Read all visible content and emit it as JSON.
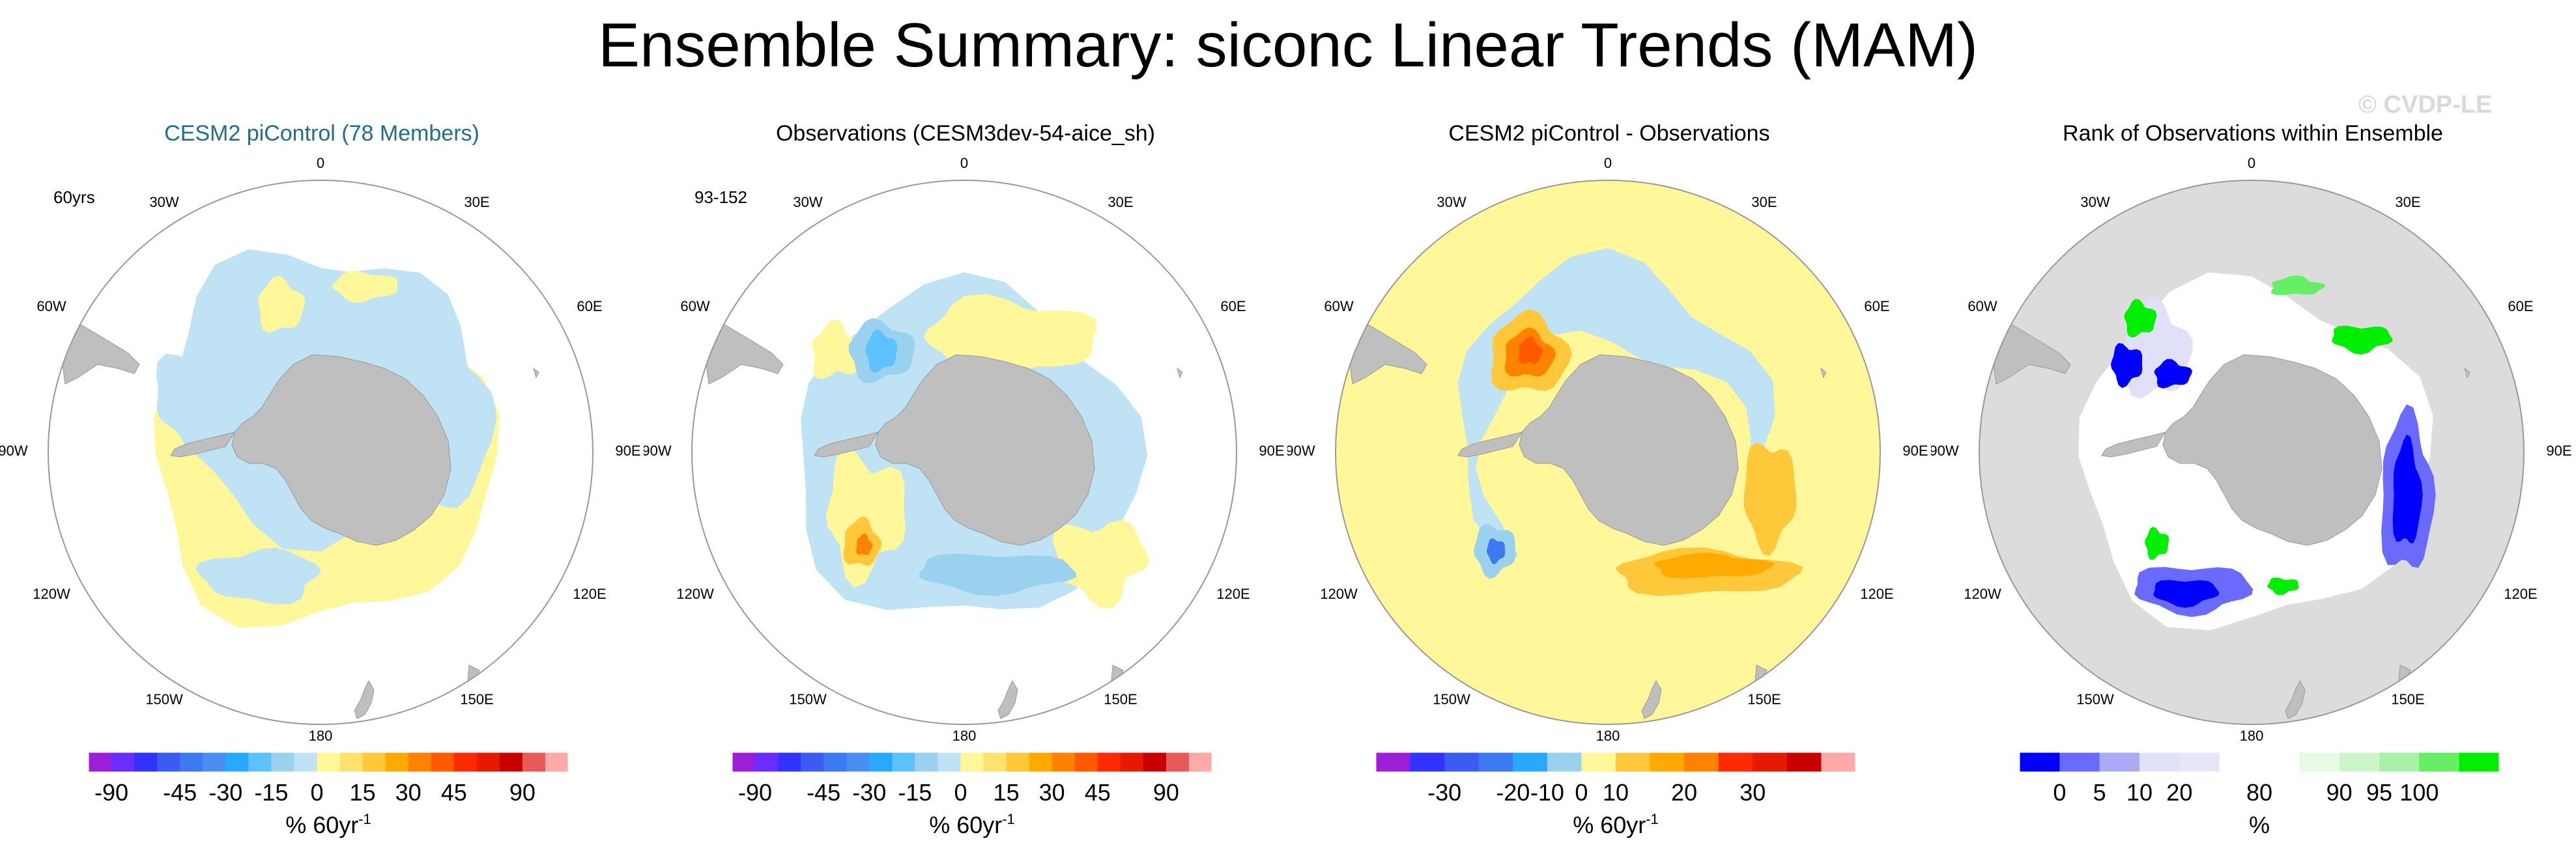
{
  "title": "Ensemble Summary: siconc Linear Trends (MAM)",
  "watermark": "© CVDP-LE",
  "colors": {
    "land": "#bfbfbf",
    "land_edge": "#999999",
    "ocean": "#ffffff",
    "rank_background": "#dcdcdc",
    "circle": "#999999",
    "panel1_title": "#1f6e8c"
  },
  "chart_data": [
    {
      "type": "heatmap",
      "projection": "south-polar-stereographic",
      "title": "CESM2 piControl (78 Members)",
      "run_label": "60yrs",
      "lon_labels": [
        "0",
        "30E",
        "60E",
        "90E",
        "120E",
        "150E",
        "180",
        "150W",
        "120W",
        "90W",
        "60W",
        "30W"
      ],
      "colorbar": {
        "label": "% 60yr",
        "label_sup": "-1",
        "ticks": [
          "-90",
          "-45",
          "-30",
          "-15",
          "0",
          "15",
          "30",
          "45",
          "90"
        ],
        "colors": [
          "#9a1fd6",
          "#6a2cff",
          "#3333ff",
          "#3a5cf2",
          "#3d79ef",
          "#4a8ff0",
          "#29a8ff",
          "#5ec2ff",
          "#99d1ef",
          "#bfe2f5",
          "#fff799",
          "#ffe170",
          "#ffc83a",
          "#ffaa00",
          "#ff8200",
          "#ff5a00",
          "#ff2a00",
          "#e61a00",
          "#c80000",
          "#e65a5a",
          "#ffaaaa"
        ],
        "ticks_at_boundaries": [
          1,
          4,
          6,
          8,
          10,
          12,
          14,
          16,
          19
        ]
      },
      "field": {
        "base": "light-blue + light-yellow dipole",
        "values_percent": [
          -15,
          15
        ]
      }
    },
    {
      "type": "heatmap",
      "projection": "south-polar-stereographic",
      "title": "Observations (CESM3dev-54-aice_sh)",
      "run_label": "93-152",
      "lon_labels": [
        "0",
        "30E",
        "60E",
        "90E",
        "120E",
        "150E",
        "180",
        "150W",
        "120W",
        "90W",
        "60W",
        "30W"
      ],
      "colorbar": {
        "label": "% 60yr",
        "label_sup": "-1",
        "ticks": [
          "-90",
          "-45",
          "-30",
          "-15",
          "0",
          "15",
          "30",
          "45",
          "90"
        ],
        "colors": [
          "#9a1fd6",
          "#6a2cff",
          "#3333ff",
          "#3a5cf2",
          "#3d79ef",
          "#4a8ff0",
          "#29a8ff",
          "#5ec2ff",
          "#99d1ef",
          "#bfe2f5",
          "#fff799",
          "#ffe170",
          "#ffc83a",
          "#ffaa00",
          "#ff8200",
          "#ff5a00",
          "#ff2a00",
          "#e61a00",
          "#c80000",
          "#e65a5a",
          "#ffaaaa"
        ],
        "ticks_at_boundaries": [
          1,
          4,
          6,
          8,
          10,
          12,
          14,
          16,
          19
        ]
      },
      "field": {
        "base": "blue/yellow mix",
        "values_percent": [
          -30,
          30
        ]
      }
    },
    {
      "type": "heatmap",
      "projection": "south-polar-stereographic",
      "title": "CESM2 piControl - Observations",
      "lon_labels": [
        "0",
        "30E",
        "60E",
        "90E",
        "120E",
        "150E",
        "180",
        "150W",
        "120W",
        "90W",
        "60W",
        "30W"
      ],
      "colorbar": {
        "label": "% 60yr",
        "label_sup": "-1",
        "ticks": [
          "-30",
          "-20",
          "-10",
          "0",
          "10",
          "20",
          "30"
        ],
        "colors": [
          "#9a1fd6",
          "#3333ff",
          "#3a5cf2",
          "#3d79ef",
          "#29a8ff",
          "#99d1ef",
          "#fff799",
          "#ffc83a",
          "#ffaa00",
          "#ff8200",
          "#ff2a00",
          "#e61a00",
          "#c80000",
          "#ffaaaa"
        ],
        "ticks_at_boundaries": [
          2,
          4,
          5,
          6,
          7,
          9,
          11
        ]
      },
      "field": {
        "base": "light yellow everywhere, orange/red and blue anomalies",
        "values_percent": [
          -15,
          30
        ]
      }
    },
    {
      "type": "heatmap",
      "projection": "south-polar-stereographic",
      "title": "Rank of Observations within Ensemble",
      "lon_labels": [
        "0",
        "30E",
        "60E",
        "90E",
        "120E",
        "150E",
        "180",
        "150W",
        "120W",
        "90W",
        "60W",
        "30W"
      ],
      "colorbar": {
        "label": "%",
        "label_sup": "",
        "ticks": [
          "0",
          "5",
          "10",
          "20",
          "80",
          "90",
          "95",
          "100"
        ],
        "colors": [
          "#0000ff",
          "#6a6aff",
          "#aaaaf5",
          "#e0e0f8",
          "#e6e6fa",
          "#ffffff",
          "#ffffff",
          "#e6fae6",
          "#ccf5cc",
          "#aaf0aa",
          "#66ee66",
          "#00ee00"
        ],
        "ticks_at_boundaries": [
          1,
          2,
          3,
          4,
          6,
          8,
          9,
          10
        ]
      },
      "field": {
        "base": "white within sea-ice zone, blue and green extremes",
        "values_percent": [
          0,
          100
        ]
      }
    }
  ]
}
